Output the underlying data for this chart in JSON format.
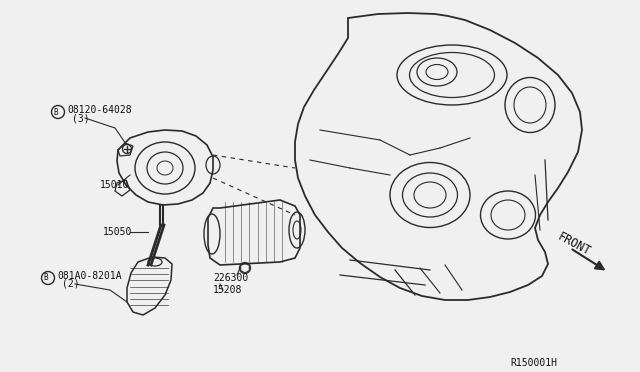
{
  "bg_color": "#f0f0f0",
  "ref_code": "R150001H",
  "labels": {
    "part1_code": "B08120-64028",
    "part1_qty": "(3)",
    "part2_id": "15010",
    "part3_id": "15050",
    "part4_code": "B081A0-8201A",
    "part4_qty": "(2)",
    "part5_id": "226300",
    "part6_id": "15208",
    "front": "FRONT"
  },
  "line_color": "#2a2a2a",
  "text_color": "#111111"
}
